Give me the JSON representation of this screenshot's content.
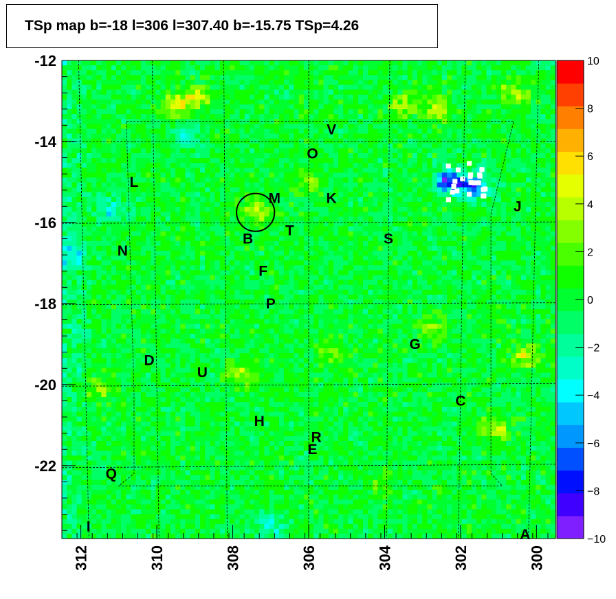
{
  "chart_data": {
    "type": "heatmap",
    "title": "TSp map b=-18 l=306 l=307.40 b=-15.75 TSp=4.26",
    "xlabel": "",
    "ylabel": "",
    "x_range": [
      312.5,
      299.5
    ],
    "y_range": [
      -23.8,
      -12.0
    ],
    "x_ticks": [
      "312",
      "310",
      "308",
      "306",
      "304",
      "302",
      "300"
    ],
    "x_tick_values": [
      312,
      310,
      308,
      306,
      304,
      302,
      300
    ],
    "y_ticks": [
      "-12",
      "-14",
      "-16",
      "-18",
      "-20",
      "-22"
    ],
    "y_tick_values": [
      -12,
      -14,
      -16,
      -18,
      -20,
      -22
    ],
    "z_range": [
      -10,
      10
    ],
    "colorbar_ticks": [
      "10",
      "8",
      "6",
      "4",
      "2",
      "0",
      "−2",
      "−4",
      "−6",
      "−8",
      "−10"
    ],
    "colorbar_tick_values": [
      10,
      8,
      6,
      4,
      2,
      0,
      -2,
      -4,
      -6,
      -8,
      -10
    ],
    "colorbar_colors": [
      "#7f1fff",
      "#4000ff",
      "#0010ff",
      "#0050ff",
      "#0098ff",
      "#00c8ff",
      "#00ffff",
      "#00ffc8",
      "#00ff9a",
      "#00ff66",
      "#00ff30",
      "#10ff00",
      "#4aff00",
      "#84ff00",
      "#b8ff00",
      "#e6ff00",
      "#ffe000",
      "#ffb000",
      "#ff8000",
      "#ff4000",
      "#ff0000"
    ],
    "highlight_circle": {
      "l": 307.4,
      "b": -15.75,
      "radius_deg": 0.5
    },
    "sources": [
      {
        "label": "V",
        "l": 305.4,
        "b": -13.7
      },
      {
        "label": "O",
        "l": 305.9,
        "b": -14.3
      },
      {
        "label": "L",
        "l": 310.6,
        "b": -15.0
      },
      {
        "label": "M",
        "l": 306.9,
        "b": -15.4
      },
      {
        "label": "K",
        "l": 305.4,
        "b": -15.4
      },
      {
        "label": "J",
        "l": 300.5,
        "b": -15.6
      },
      {
        "label": "B",
        "l": 307.6,
        "b": -16.4
      },
      {
        "label": "T",
        "l": 306.5,
        "b": -16.2
      },
      {
        "label": "S",
        "l": 303.9,
        "b": -16.4
      },
      {
        "label": "N",
        "l": 310.9,
        "b": -16.7
      },
      {
        "label": "F",
        "l": 307.2,
        "b": -17.2
      },
      {
        "label": "P",
        "l": 307.0,
        "b": -18.0
      },
      {
        "label": "G",
        "l": 303.2,
        "b": -19.0
      },
      {
        "label": "D",
        "l": 310.2,
        "b": -19.4
      },
      {
        "label": "U",
        "l": 308.8,
        "b": -19.7
      },
      {
        "label": "C",
        "l": 302.0,
        "b": -20.4
      },
      {
        "label": "H",
        "l": 307.3,
        "b": -20.9
      },
      {
        "label": "R",
        "l": 305.8,
        "b": -21.3
      },
      {
        "label": "E",
        "l": 305.9,
        "b": -21.6
      },
      {
        "label": "Q",
        "l": 311.2,
        "b": -22.2
      },
      {
        "label": "I",
        "l": 311.8,
        "b": -23.5
      },
      {
        "label": "A",
        "l": 300.3,
        "b": -23.7
      }
    ],
    "hotspots": [
      {
        "l": 309.5,
        "b": -13.1,
        "z": 5
      },
      {
        "l": 308.9,
        "b": -12.9,
        "z": 4
      },
      {
        "l": 306.0,
        "b": -15.0,
        "z": 3
      },
      {
        "l": 307.4,
        "b": -15.75,
        "z": 4.26
      },
      {
        "l": 303.5,
        "b": -13.1,
        "z": 4
      },
      {
        "l": 302.6,
        "b": -13.2,
        "z": 4
      },
      {
        "l": 300.6,
        "b": -12.8,
        "z": 4
      },
      {
        "l": 302.8,
        "b": -18.6,
        "z": 3
      },
      {
        "l": 300.3,
        "b": -19.3,
        "z": 4
      },
      {
        "l": 301.1,
        "b": -21.1,
        "z": 4
      },
      {
        "l": 307.8,
        "b": -19.7,
        "z": 4
      },
      {
        "l": 305.4,
        "b": -19.2,
        "z": 3
      },
      {
        "l": 311.5,
        "b": -20.1,
        "z": 3
      },
      {
        "l": 304.1,
        "b": -22.4,
        "z": 2
      }
    ],
    "coldspots": [
      {
        "l": 302.3,
        "b": -15.0,
        "z": -9
      },
      {
        "l": 301.6,
        "b": -15.1,
        "z": -8
      },
      {
        "l": 312.2,
        "b": -16.8,
        "z": -4
      },
      {
        "l": 309.2,
        "b": -13.9,
        "z": -3
      },
      {
        "l": 307.0,
        "b": -23.5,
        "z": -3
      },
      {
        "l": 311.2,
        "b": -15.7,
        "z": -4
      }
    ],
    "grid": true
  }
}
